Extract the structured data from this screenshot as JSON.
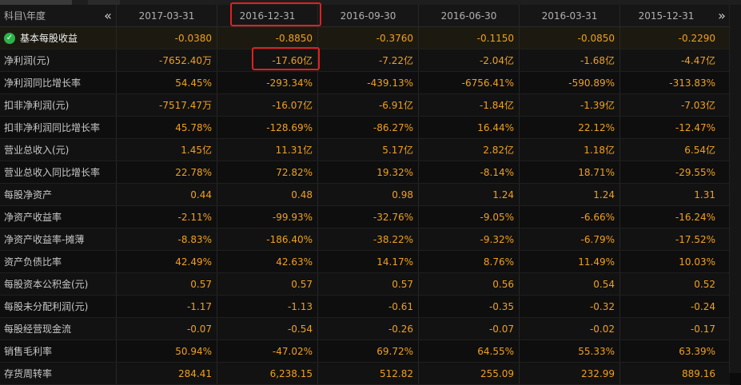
{
  "header": {
    "label": "科目\\年度",
    "nav_left": "«",
    "nav_right": "»",
    "periods": [
      "2017-03-31",
      "2016-12-31",
      "2016-09-30",
      "2016-06-30",
      "2016-03-31",
      "2015-12-31"
    ]
  },
  "rows": [
    {
      "label": "基本每股收益",
      "values": [
        "-0.0380",
        "-0.8850",
        "-0.3760",
        "-0.1150",
        "-0.0850",
        "-0.2290"
      ]
    },
    {
      "label": "净利润(元)",
      "values": [
        "-7652.40万",
        "-17.60亿",
        "-7.22亿",
        "-2.04亿",
        "-1.68亿",
        "-4.47亿"
      ]
    },
    {
      "label": "净利润同比增长率",
      "values": [
        "54.45%",
        "-293.34%",
        "-439.13%",
        "-6756.41%",
        "-590.89%",
        "-313.83%"
      ]
    },
    {
      "label": "扣非净利润(元)",
      "values": [
        "-7517.47万",
        "-16.07亿",
        "-6.91亿",
        "-1.84亿",
        "-1.39亿",
        "-7.03亿"
      ]
    },
    {
      "label": "扣非净利润同比增长率",
      "values": [
        "45.78%",
        "-128.69%",
        "-86.27%",
        "16.44%",
        "22.12%",
        "-12.47%"
      ]
    },
    {
      "label": "营业总收入(元)",
      "values": [
        "1.45亿",
        "11.31亿",
        "5.17亿",
        "2.82亿",
        "1.18亿",
        "6.54亿"
      ]
    },
    {
      "label": "营业总收入同比增长率",
      "values": [
        "22.78%",
        "72.82%",
        "19.32%",
        "-8.14%",
        "18.71%",
        "-29.55%"
      ]
    },
    {
      "label": "每股净资产",
      "values": [
        "0.44",
        "0.48",
        "0.98",
        "1.24",
        "1.24",
        "1.31"
      ]
    },
    {
      "label": "净资产收益率",
      "values": [
        "-2.11%",
        "-99.93%",
        "-32.76%",
        "-9.05%",
        "-6.66%",
        "-16.24%"
      ]
    },
    {
      "label": "净资产收益率-摊薄",
      "values": [
        "-8.83%",
        "-186.40%",
        "-38.22%",
        "-9.32%",
        "-6.79%",
        "-17.52%"
      ]
    },
    {
      "label": "资产负债比率",
      "values": [
        "42.49%",
        "42.63%",
        "14.17%",
        "8.76%",
        "11.49%",
        "10.03%"
      ]
    },
    {
      "label": "每股资本公积金(元)",
      "values": [
        "0.57",
        "0.57",
        "0.57",
        "0.56",
        "0.54",
        "0.52"
      ]
    },
    {
      "label": "每股未分配利润(元)",
      "values": [
        "-1.17",
        "-1.13",
        "-0.61",
        "-0.35",
        "-0.32",
        "-0.24"
      ]
    },
    {
      "label": "每股经营现金流",
      "values": [
        "-0.07",
        "-0.54",
        "-0.26",
        "-0.07",
        "-0.02",
        "-0.17"
      ]
    },
    {
      "label": "销售毛利率",
      "values": [
        "50.94%",
        "-47.02%",
        "69.72%",
        "64.55%",
        "55.33%",
        "63.39%"
      ]
    },
    {
      "label": "存货周转率",
      "values": [
        "284.41",
        "6,238.15",
        "512.82",
        "255.09",
        "232.99",
        "889.16"
      ]
    }
  ],
  "colors": {
    "value": "#f0a020",
    "label": "#c8c8c8",
    "highlight_box": "#e02020",
    "check": "#2bb34a"
  }
}
